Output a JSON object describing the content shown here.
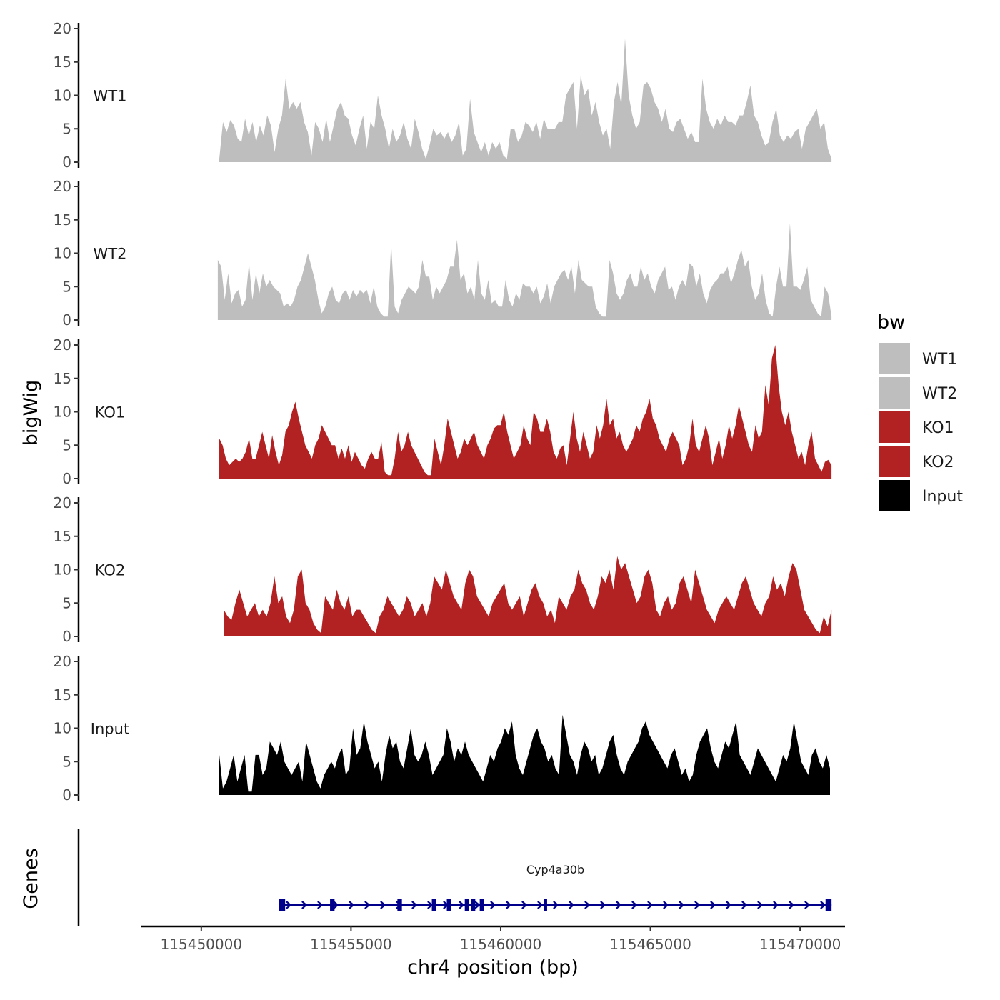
{
  "chart_data": {
    "type": "area",
    "xlabel": "chr4 position (bp)",
    "ylabel_tracks": "bigWig",
    "ylabel_genes": "Genes",
    "xlim": [
      115448000,
      115471500
    ],
    "ylim": [
      0,
      20
    ],
    "y_ticks": [
      0,
      5,
      10,
      15,
      20
    ],
    "x_ticks": [
      115450000,
      115455000,
      115460000,
      115465000,
      115470000
    ],
    "x_tick_labels": [
      "115450000",
      "115455000",
      "115460000",
      "115465000",
      "115470000"
    ],
    "legend": {
      "title": "bw",
      "placement": "right",
      "entries": [
        {
          "name": "WT1",
          "color": "#bebebe"
        },
        {
          "name": "WT2",
          "color": "#bebebe"
        },
        {
          "name": "KO1",
          "color": "#b22222"
        },
        {
          "name": "KO2",
          "color": "#b22222"
        },
        {
          "name": "Input",
          "color": "#000000"
        }
      ]
    },
    "series": [
      {
        "name": "WT1",
        "color": "#bebebe",
        "x_start": 115450600,
        "x_end": 115471050,
        "values": [
          0.5,
          6,
          4.5,
          6.3,
          5.5,
          3.5,
          3,
          6.5,
          4,
          6,
          3,
          5.5,
          4,
          7,
          5.5,
          1.5,
          5,
          7,
          12.5,
          8,
          9,
          8,
          9,
          6,
          4.5,
          1,
          6,
          5,
          3,
          6.5,
          3,
          5.5,
          8,
          9,
          7,
          6.5,
          4,
          2.5,
          5,
          7,
          2,
          6,
          5,
          10,
          7,
          5,
          2,
          5,
          3,
          4,
          6,
          3.5,
          2,
          6.5,
          4.5,
          2,
          0.5,
          2.5,
          5,
          4,
          4.5,
          3.5,
          4.5,
          3,
          4,
          6,
          1,
          2,
          9.5,
          4.5,
          3,
          1.5,
          3,
          1,
          3,
          2,
          3,
          1,
          0.5,
          5,
          5,
          3,
          4,
          6,
          5.5,
          4.5,
          6,
          3.5,
          6.5,
          5,
          5,
          5,
          6,
          6,
          10,
          11,
          12,
          5,
          13,
          10,
          11,
          7,
          9,
          6,
          4,
          5,
          2,
          9,
          12,
          8.5,
          18.5,
          10,
          7,
          5,
          6,
          11.5,
          12,
          11,
          9,
          8,
          6,
          8,
          5,
          4.5,
          6,
          6.5,
          5,
          3.5,
          4.5,
          3,
          3,
          12.5,
          8,
          6,
          5,
          6.5,
          5.5,
          7,
          6,
          6,
          5.5,
          7,
          7,
          9,
          11.5,
          7,
          6,
          4,
          2.5,
          3,
          6,
          8,
          4,
          3,
          4,
          3.5,
          4.5,
          5,
          2,
          5,
          6,
          7,
          8,
          5,
          6,
          2,
          0.5
        ]
      },
      {
        "name": "WT2",
        "color": "#bebebe",
        "x_start": 115450550,
        "x_end": 115471050,
        "values": [
          9,
          8,
          3,
          7,
          2.5,
          4,
          4.5,
          2,
          3,
          8.5,
          3,
          7,
          4,
          7,
          5,
          6,
          5,
          4.5,
          4,
          2,
          2.5,
          2,
          3,
          5,
          6,
          8,
          10,
          8,
          6,
          3,
          1,
          2,
          4,
          5,
          3,
          2.5,
          4,
          4.5,
          3,
          4.5,
          3.5,
          4.5,
          4,
          4.5,
          2.5,
          5,
          2,
          1,
          0.5,
          0.5,
          11.5,
          2,
          1,
          3,
          4,
          5,
          4.5,
          4,
          5,
          9,
          6.5,
          6.5,
          3,
          5,
          4,
          5,
          6,
          8,
          8,
          12,
          6,
          7,
          4,
          5,
          3,
          9,
          4,
          3,
          6,
          2.5,
          3,
          2,
          2,
          6,
          3,
          2,
          4,
          3,
          5.5,
          5,
          5,
          4,
          5,
          2.5,
          3.5,
          5.5,
          2.5,
          5,
          6,
          7,
          7.5,
          6,
          8,
          4,
          9,
          6,
          5.5,
          5,
          5,
          2,
          1,
          0.5,
          0.5,
          9,
          7,
          4,
          3,
          4,
          6,
          7,
          5,
          5,
          8,
          6,
          7,
          5,
          4,
          6,
          7,
          8,
          4.5,
          5,
          3,
          5,
          6,
          5,
          8.5,
          8,
          5,
          7,
          4,
          2.5,
          4.5,
          5.5,
          6,
          7,
          7,
          8,
          5.5,
          7,
          9,
          10.5,
          8,
          9,
          5,
          3,
          4,
          7,
          3,
          1,
          0.5,
          5,
          8,
          5,
          5,
          14.5,
          5,
          5,
          4.5,
          6,
          8,
          3,
          2,
          1,
          0.5,
          5,
          4,
          0.5
        ]
      },
      {
        "name": "KO1",
        "color": "#b22222",
        "x_start": 115450600,
        "x_end": 115471050,
        "values": [
          6,
          5,
          3,
          2,
          2.5,
          3,
          2.5,
          3,
          4,
          6,
          3,
          3,
          5,
          7,
          5,
          3,
          6.5,
          4,
          2,
          3.5,
          7,
          8,
          10,
          11.5,
          9,
          7,
          5,
          4,
          3,
          5,
          6,
          8,
          7,
          6,
          5,
          5,
          3,
          4.5,
          3,
          5,
          2.5,
          4,
          3,
          2,
          1.5,
          3,
          4,
          3,
          3,
          5.5,
          1,
          0.5,
          0.5,
          3,
          7,
          4,
          5,
          7,
          5,
          4,
          3,
          2,
          1,
          0.5,
          0.5,
          6,
          4,
          2,
          5,
          9,
          7,
          5,
          3,
          4,
          6,
          5,
          6,
          7,
          5,
          4,
          3,
          5,
          6,
          7.5,
          8,
          8,
          10,
          7,
          5,
          3,
          4,
          5,
          8,
          6,
          5,
          10,
          9,
          7,
          7,
          9,
          7,
          4,
          3,
          4.5,
          5,
          2,
          6,
          10,
          6,
          4,
          7,
          5,
          3,
          4,
          8,
          6,
          8,
          12,
          8,
          9,
          6,
          7,
          5,
          4,
          5,
          6,
          8,
          7,
          9,
          10,
          12,
          9,
          8,
          6,
          5,
          4,
          6,
          7,
          6,
          5,
          2,
          3,
          5,
          9,
          5,
          4,
          6,
          8,
          6,
          2,
          4,
          6,
          3,
          5,
          8,
          6,
          8,
          11,
          9,
          7,
          5,
          4,
          8,
          6,
          7,
          14,
          11,
          18,
          20,
          14,
          10,
          8,
          10,
          7,
          5,
          3,
          4,
          2,
          5,
          7,
          3,
          2,
          1,
          2.5,
          2.8,
          2
        ]
      },
      {
        "name": "KO2",
        "color": "#b22222",
        "x_start": 115450750,
        "x_end": 115471050,
        "values": [
          4,
          3,
          2.5,
          5,
          7,
          5,
          3,
          4,
          5,
          3,
          4,
          3,
          5,
          9,
          5,
          6,
          3,
          2,
          4,
          9,
          10,
          5,
          4,
          2,
          1,
          0.5,
          6,
          5,
          4,
          7,
          5,
          4,
          6,
          3,
          4,
          4,
          3,
          2,
          1,
          0.5,
          3,
          4,
          6,
          5,
          4,
          3,
          4,
          6,
          5,
          3,
          4,
          5,
          3,
          5,
          9,
          8,
          7,
          10,
          8,
          6,
          5,
          4,
          8,
          10,
          9,
          6,
          5,
          4,
          3,
          5,
          6,
          7,
          8,
          5,
          4,
          5,
          6,
          3,
          5,
          7,
          8,
          6,
          5,
          3,
          4,
          2,
          6,
          5,
          4,
          6,
          7,
          10,
          8,
          7,
          5,
          4,
          6,
          9,
          8,
          10,
          7,
          12,
          10,
          11,
          9,
          7,
          5,
          6,
          9,
          10,
          8,
          4,
          3,
          5,
          6,
          4,
          5,
          8,
          9,
          7,
          5,
          10,
          8,
          6,
          4,
          3,
          2,
          4,
          5,
          6,
          5,
          4,
          6,
          8,
          9,
          7,
          5,
          4,
          3,
          5,
          6,
          9,
          7,
          8,
          6,
          9,
          11,
          10,
          7,
          4,
          3,
          2,
          1,
          0.5,
          3,
          1.5,
          4
        ]
      },
      {
        "name": "Input",
        "color": "#000000",
        "x_start": 115450600,
        "x_end": 115471000,
        "values": [
          6,
          1,
          2,
          4,
          6,
          2,
          4,
          6,
          0.5,
          0.5,
          6,
          6,
          3,
          4,
          8,
          7,
          6,
          8,
          5,
          4,
          3,
          4,
          5,
          2,
          8,
          6,
          4,
          2,
          1,
          3,
          4,
          5,
          4,
          6,
          7,
          3,
          4,
          10,
          6,
          7,
          11,
          8,
          6,
          4,
          5,
          2,
          6,
          9,
          7,
          8,
          5,
          4,
          7,
          10,
          6,
          5,
          6,
          8,
          6,
          3,
          4,
          5,
          6,
          10,
          8,
          5,
          7,
          6,
          8,
          6,
          5,
          4,
          3,
          2,
          4,
          6,
          5,
          7,
          8,
          10,
          9,
          11,
          6,
          4,
          3,
          5,
          7,
          9,
          10,
          8,
          7,
          5,
          6,
          4,
          3,
          12,
          9,
          6,
          5,
          3,
          6,
          8,
          7,
          5,
          6,
          3,
          4,
          6,
          8,
          9,
          6,
          4,
          3,
          5,
          6,
          7,
          8,
          10,
          11,
          9,
          8,
          7,
          6,
          5,
          4,
          6,
          7,
          5,
          3,
          4,
          2,
          3,
          6,
          8,
          9,
          10,
          7,
          5,
          4,
          6,
          8,
          7,
          9,
          11,
          6,
          5,
          4,
          3,
          5,
          7,
          6,
          5,
          4,
          3,
          2,
          4,
          6,
          5,
          7,
          11,
          8,
          5,
          4,
          3,
          6,
          7,
          5,
          4,
          6,
          4
        ]
      }
    ],
    "genes": [
      {
        "name": "Cyp4a30b",
        "strand": "+",
        "start": 115452600,
        "end": 115471050,
        "exons": [
          [
            115452600,
            115452800
          ],
          [
            115454300,
            115454450
          ],
          [
            115456550,
            115456700
          ],
          [
            115457700,
            115457850
          ],
          [
            115458200,
            115458350
          ],
          [
            115458800,
            115458950
          ],
          [
            115459000,
            115459150
          ],
          [
            115459300,
            115459450
          ],
          [
            115461450,
            115461550
          ],
          [
            115470850,
            115471050
          ]
        ]
      }
    ]
  }
}
